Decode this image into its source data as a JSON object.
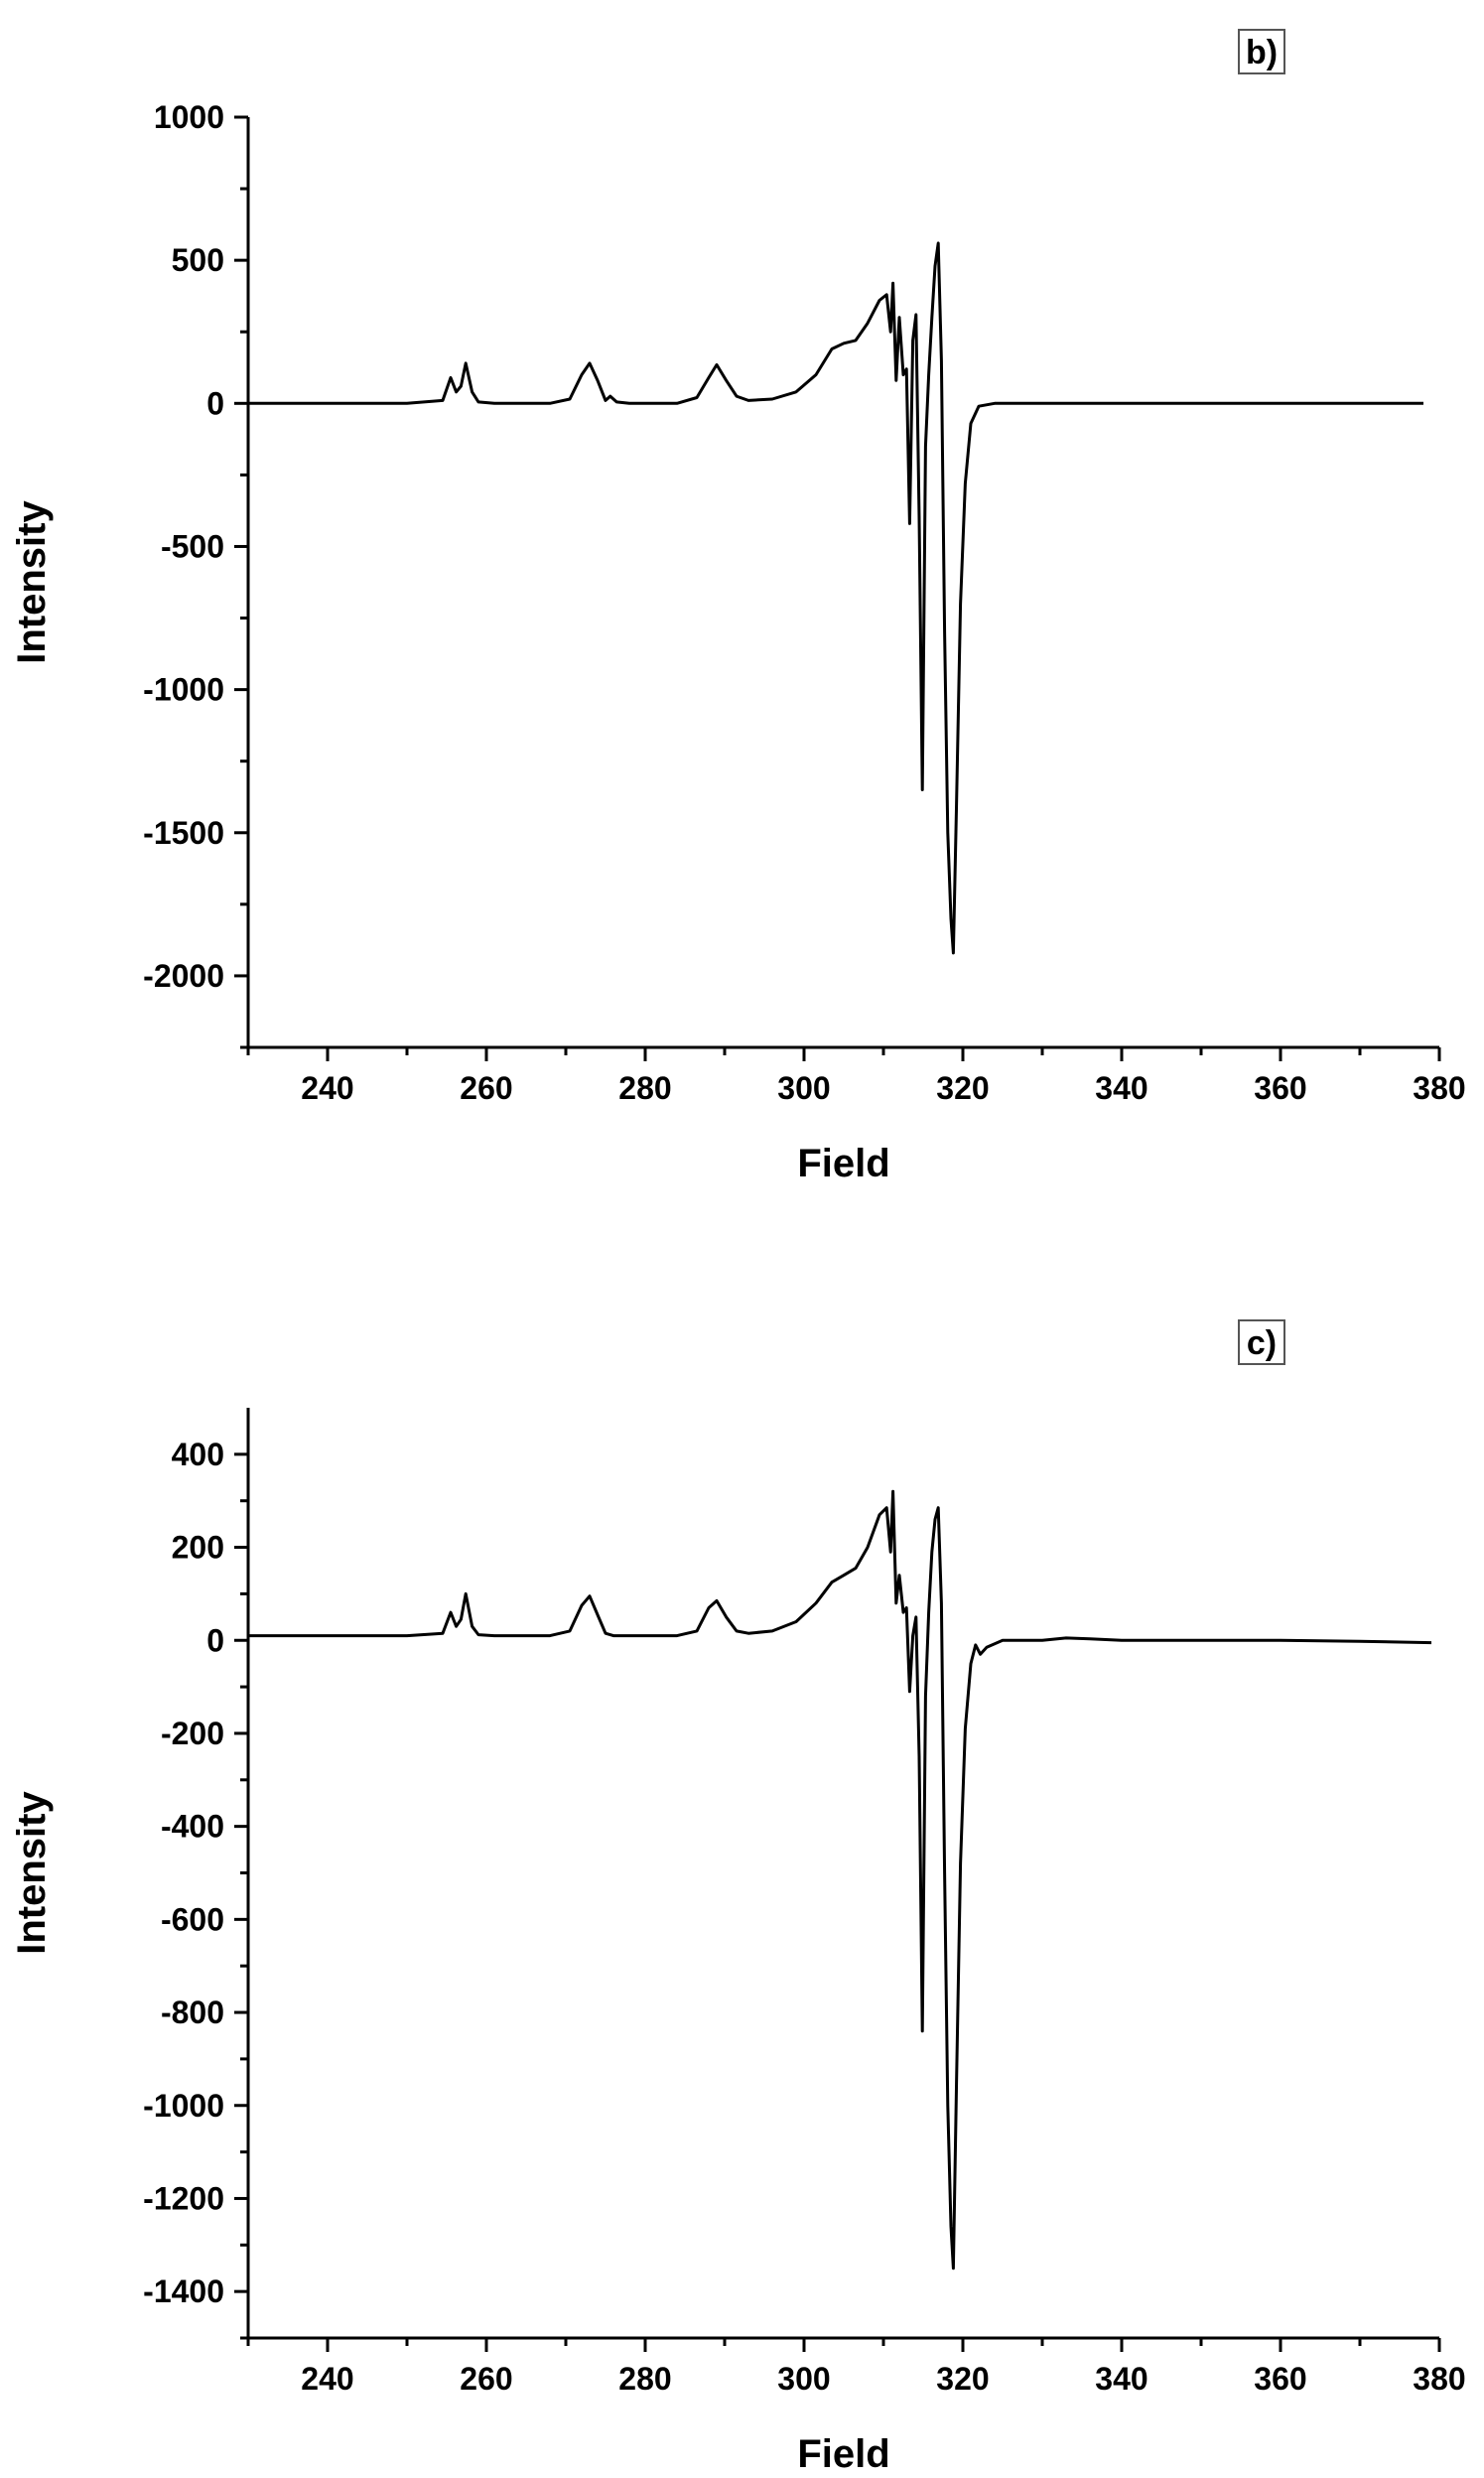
{
  "chart_data": [
    {
      "type": "line",
      "panel_label": "b)",
      "xlabel": "Field",
      "ylabel": "Intensity",
      "xlim": [
        230,
        380
      ],
      "ylim": [
        -2250,
        1000
      ],
      "xticks": [
        240,
        260,
        280,
        300,
        320,
        340,
        360,
        380
      ],
      "yticks": [
        1000,
        500,
        0,
        -500,
        -1000,
        -1500,
        -2000
      ],
      "grid": false,
      "series": [
        {
          "x": [
            230,
            250,
            254.5,
            255.5,
            256.2,
            256.8,
            257.4,
            258.2,
            259,
            261,
            268,
            270.5,
            272,
            273,
            274,
            275,
            275.6,
            276.4,
            278,
            284,
            286.5,
            288,
            289,
            290.2,
            291.5,
            293,
            296,
            299,
            301.5,
            303.5,
            305,
            306.5,
            308,
            309.5,
            310.4,
            310.9,
            311.2,
            311.6,
            312.0,
            312.5,
            312.9,
            313.3,
            313.7,
            314.1,
            314.5,
            314.9,
            315.3,
            315.7,
            316.1,
            316.5,
            316.9,
            317.3,
            317.7,
            318.1,
            318.5,
            318.8,
            319.2,
            319.7,
            320.3,
            321,
            322,
            324,
            330,
            340,
            350,
            360,
            370,
            378
          ],
          "y": [
            0,
            0,
            10,
            90,
            40,
            60,
            140,
            40,
            5,
            0,
            0,
            15,
            100,
            140,
            80,
            10,
            25,
            5,
            0,
            0,
            20,
            90,
            135,
            80,
            25,
            10,
            15,
            40,
            100,
            190,
            210,
            220,
            280,
            360,
            380,
            250,
            420,
            80,
            300,
            100,
            120,
            -420,
            220,
            310,
            -400,
            -1350,
            -150,
            100,
            300,
            480,
            560,
            150,
            -800,
            -1500,
            -1800,
            -1920,
            -1400,
            -700,
            -280,
            -70,
            -10,
            0,
            0,
            0,
            0,
            0,
            0,
            0
          ]
        }
      ]
    },
    {
      "type": "line",
      "panel_label": "c)",
      "xlabel": "Field",
      "ylabel": "Intensity",
      "xlim": [
        230,
        380
      ],
      "ylim": [
        -1500,
        500
      ],
      "xticks": [
        240,
        260,
        280,
        300,
        320,
        340,
        360,
        380
      ],
      "yticks": [
        400,
        200,
        0,
        -200,
        -400,
        -600,
        -800,
        -1000,
        -1200,
        -1400
      ],
      "grid": false,
      "series": [
        {
          "x": [
            230,
            250,
            254.5,
            255.5,
            256.2,
            256.8,
            257.4,
            258.2,
            259,
            261,
            268,
            270.5,
            272,
            273,
            274,
            275,
            276,
            284,
            286.5,
            288,
            289,
            290.2,
            291.5,
            293,
            296,
            299,
            301.5,
            303.5,
            305,
            306.5,
            308,
            309.5,
            310.4,
            310.9,
            311.2,
            311.6,
            312.0,
            312.5,
            312.9,
            313.3,
            313.7,
            314.1,
            314.5,
            314.9,
            315.3,
            315.7,
            316.1,
            316.5,
            316.9,
            317.3,
            317.7,
            318.1,
            318.5,
            318.8,
            319.2,
            319.7,
            320.3,
            321,
            321.6,
            322.2,
            323,
            325,
            330,
            333,
            336,
            340,
            350,
            360,
            370,
            379
          ],
          "y": [
            10,
            10,
            15,
            60,
            30,
            45,
            100,
            30,
            12,
            10,
            10,
            20,
            75,
            95,
            55,
            15,
            10,
            10,
            20,
            70,
            85,
            50,
            20,
            15,
            20,
            40,
            80,
            125,
            140,
            155,
            200,
            270,
            285,
            190,
            320,
            80,
            140,
            60,
            70,
            -110,
            10,
            50,
            -250,
            -840,
            -120,
            60,
            190,
            260,
            285,
            80,
            -500,
            -1000,
            -1260,
            -1350,
            -950,
            -480,
            -190,
            -50,
            -10,
            -30,
            -15,
            0,
            0,
            5,
            3,
            0,
            0,
            0,
            -2,
            -5
          ]
        }
      ]
    }
  ]
}
